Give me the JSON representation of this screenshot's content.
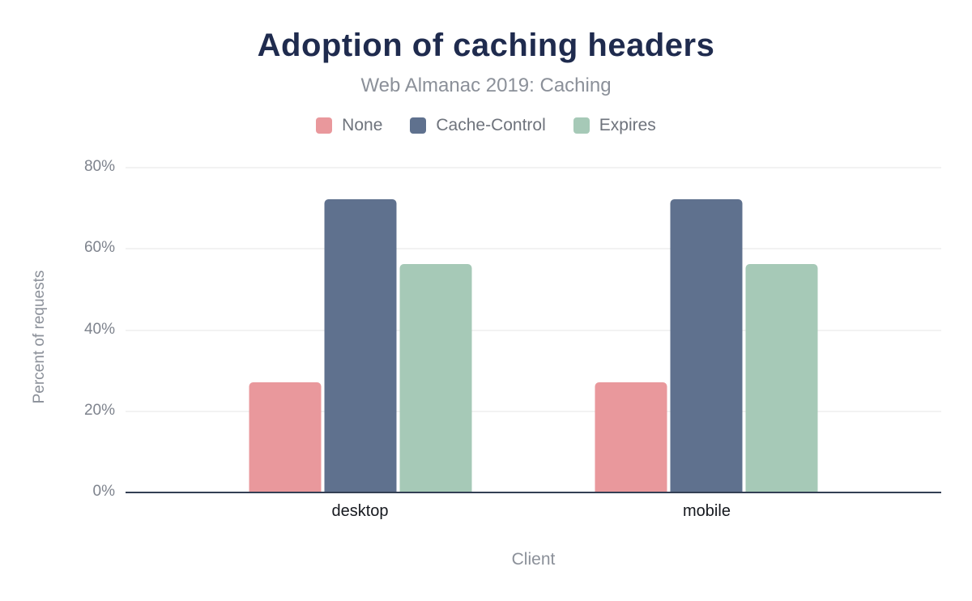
{
  "chart_data": {
    "type": "bar",
    "title": "Adoption of caching headers",
    "subtitle": "Web Almanac 2019: Caching",
    "xlabel": "Client",
    "ylabel": "Percent of requests",
    "categories": [
      "desktop",
      "mobile"
    ],
    "series": [
      {
        "name": "None",
        "color": "#e9989c",
        "values": [
          27,
          27
        ]
      },
      {
        "name": "Cache-Control",
        "color": "#5f718e",
        "values": [
          72,
          72
        ]
      },
      {
        "name": "Expires",
        "color": "#a6c9b7",
        "values": [
          56,
          56
        ]
      }
    ],
    "ylim": [
      0,
      80
    ],
    "yticks": [
      {
        "value": 0,
        "label": "0%"
      },
      {
        "value": 20,
        "label": "20%"
      },
      {
        "value": 40,
        "label": "40%"
      },
      {
        "value": 60,
        "label": "60%"
      },
      {
        "value": 80,
        "label": "80%"
      }
    ],
    "grid": true,
    "legend_position": "top",
    "values_unit": "percent of requests"
  },
  "colors": {
    "background": "#ffffff",
    "title": "#1f2b4e",
    "subtitle": "#8b9099",
    "legend_label": "#6e737c",
    "tick_label": "#7e838d",
    "category_label": "#15181e",
    "axis_title": "#8b9099",
    "axis_line": "#333f54",
    "gridline": "#f2f2f2"
  }
}
